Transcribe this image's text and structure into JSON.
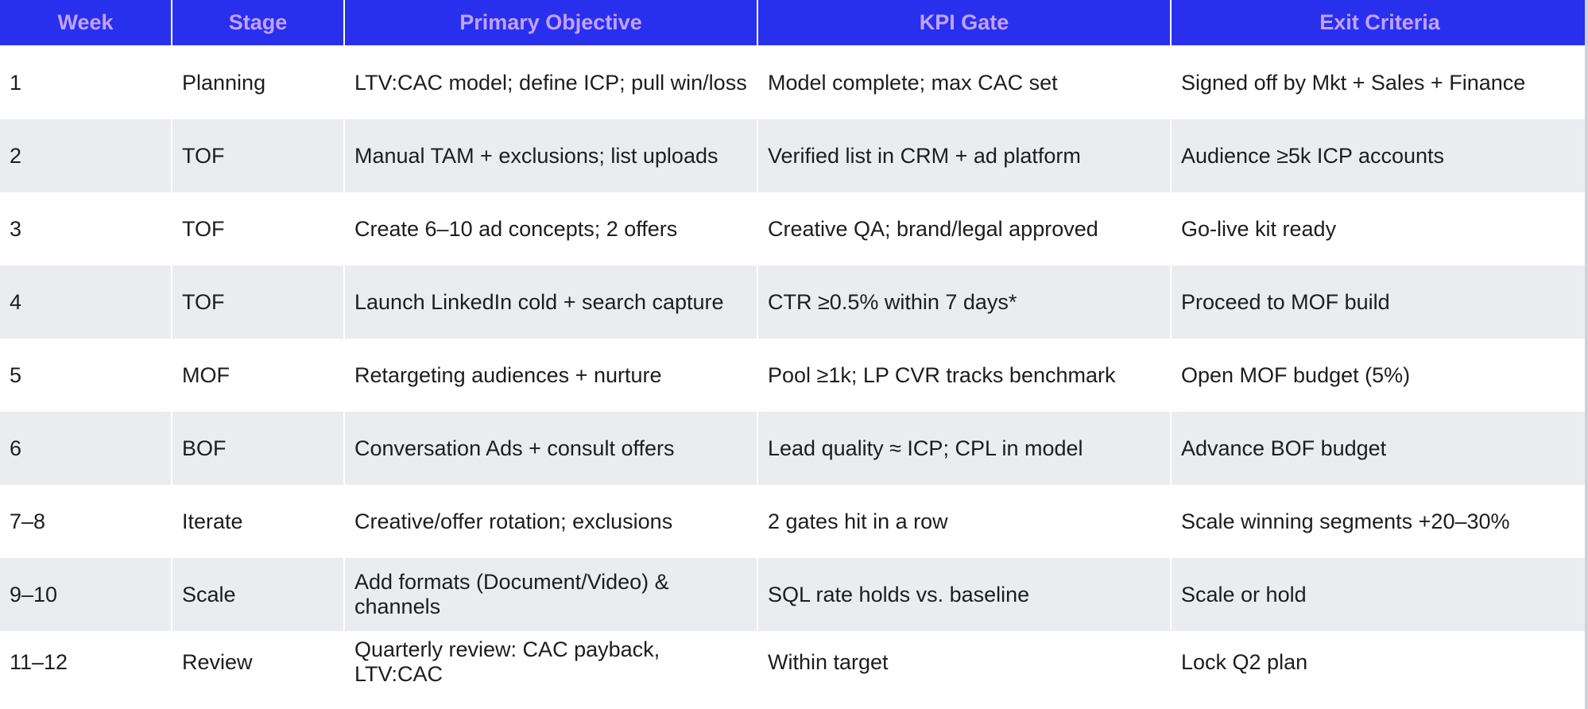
{
  "table": {
    "headers": [
      "Week",
      "Stage",
      "Primary Objective",
      "KPI Gate",
      "Exit Criteria"
    ],
    "rows": [
      [
        "1",
        "Planning",
        "LTV:CAC model; define ICP; pull win/loss",
        "Model complete; max CAC set",
        "Signed off by Mkt + Sales + Finance"
      ],
      [
        "2",
        "TOF",
        "Manual TAM + exclusions; list uploads",
        "Verified list in CRM + ad platform",
        "Audience ≥5k ICP accounts"
      ],
      [
        "3",
        "TOF",
        "Create 6–10 ad concepts; 2 offers",
        "Creative QA; brand/legal approved",
        "Go-live kit ready"
      ],
      [
        "4",
        "TOF",
        "Launch LinkedIn cold + search capture",
        "CTR ≥0.5% within 7 days*",
        "Proceed to MOF build"
      ],
      [
        "5",
        "MOF",
        "Retargeting audiences + nurture",
        "Pool ≥1k; LP CVR tracks benchmark",
        "Open MOF budget (5%)"
      ],
      [
        "6",
        "BOF",
        "Conversation Ads + consult offers",
        "Lead quality ≈ ICP; CPL in model",
        "Advance BOF budget"
      ],
      [
        "7–8",
        "Iterate",
        "Creative/offer rotation; exclusions",
        "2 gates hit in a row",
        "Scale winning segments +20–30%"
      ],
      [
        "9–10",
        "Scale",
        "Add formats (Document/Video) & channels",
        "SQL rate holds vs. baseline",
        "Scale or hold"
      ],
      [
        "11–12",
        "Review",
        "Quarterly review: CAC payback, LTV:CAC",
        "Within target",
        "Lock Q2 plan"
      ]
    ]
  },
  "colors": {
    "header_bg": "#2830ee",
    "header_text": "#c2a2ff",
    "stripe": "#ebecf0"
  }
}
